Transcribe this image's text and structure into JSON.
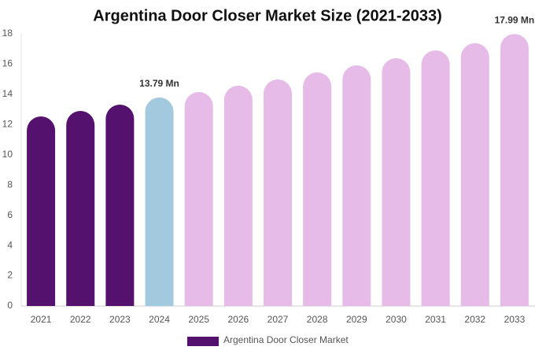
{
  "chart_data": {
    "type": "bar",
    "title": "Argentina Door Closer Market Size (2021-2033)",
    "categories": [
      "2021",
      "2022",
      "2023",
      "2024",
      "2025",
      "2026",
      "2027",
      "2028",
      "2029",
      "2030",
      "2031",
      "2032",
      "2033"
    ],
    "series": [
      {
        "name": "Argentina Door Closer Market",
        "color": "#54116e",
        "values": [
          12.54,
          12.9,
          13.32,
          13.79,
          14.15,
          14.57,
          14.98,
          15.45,
          15.92,
          16.39,
          16.91,
          17.38,
          17.99
        ],
        "colors": [
          "#54116e",
          "#54116e",
          "#54116e",
          "#a3c9de",
          "#e6bbe8",
          "#e6bbe8",
          "#e6bbe8",
          "#e6bbe8",
          "#e6bbe8",
          "#e6bbe8",
          "#e6bbe8",
          "#e6bbe8",
          "#e6bbe8"
        ],
        "value_labels": [
          null,
          null,
          null,
          "13.79 Mn",
          null,
          null,
          null,
          null,
          null,
          null,
          null,
          null,
          "17.99 Mn"
        ]
      }
    ],
    "ylim": [
      0,
      18
    ],
    "yticks": [
      0,
      2,
      4,
      6,
      8,
      10,
      12,
      14,
      16,
      18
    ],
    "grid": false
  }
}
